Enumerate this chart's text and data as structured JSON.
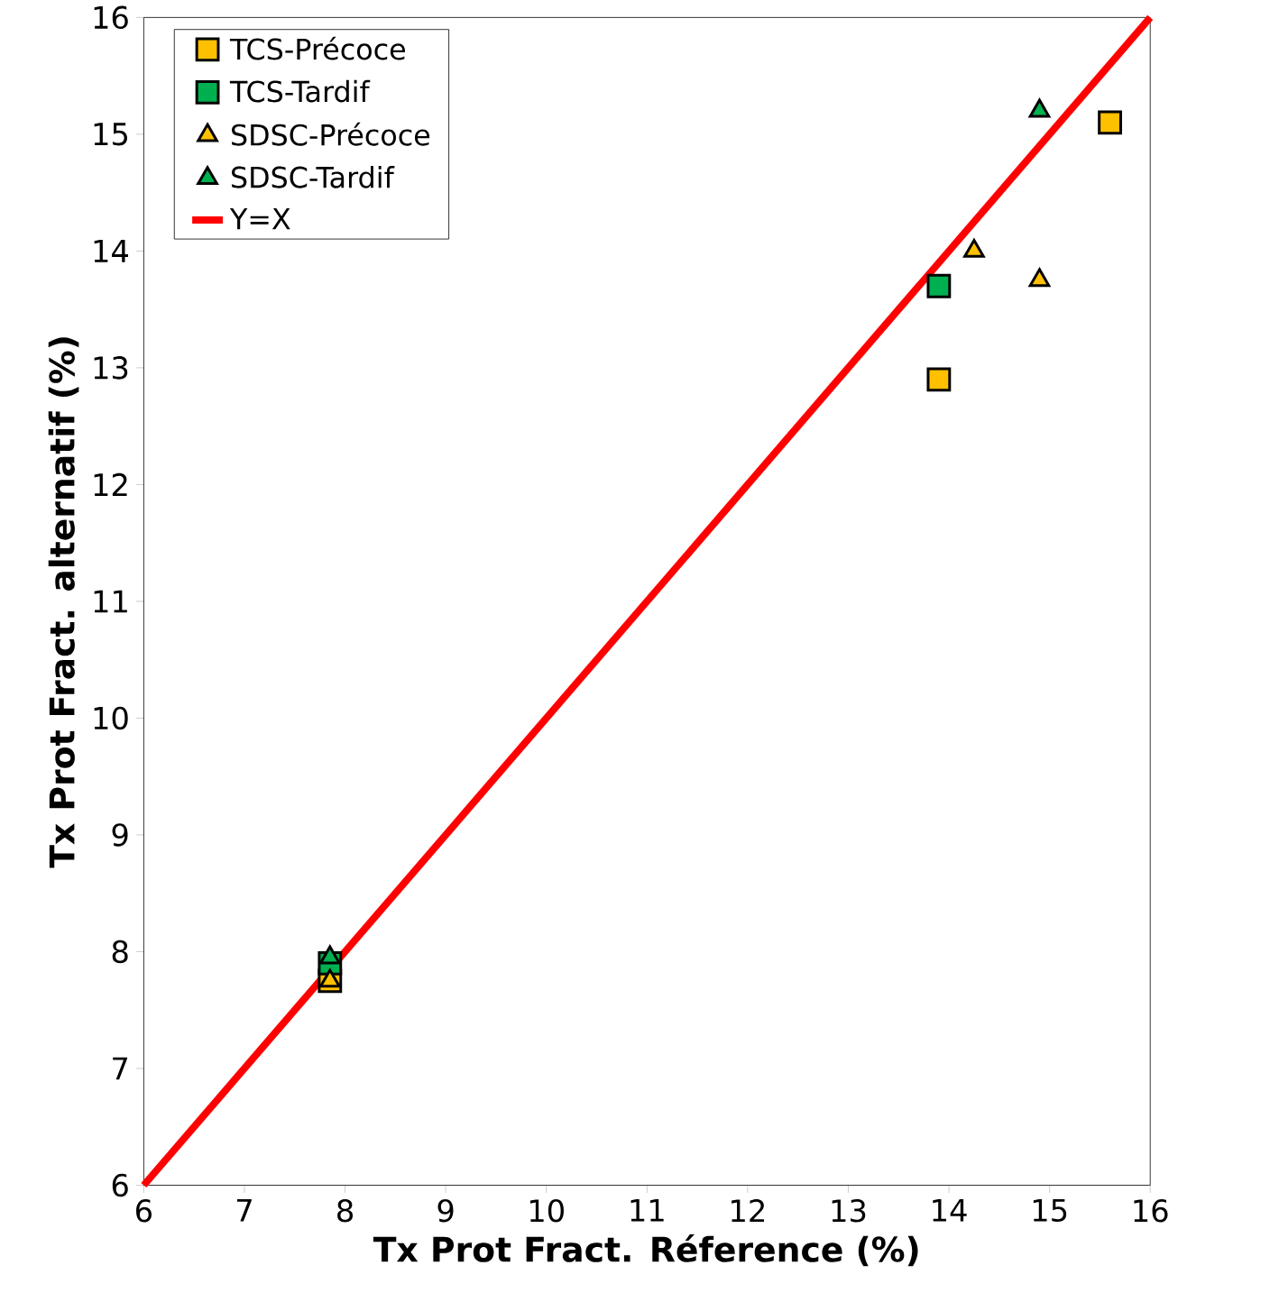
{
  "chart_data": {
    "type": "scatter",
    "xlabel": "Tx Prot Fract. Réference (%)",
    "ylabel": "Tx Prot Fract. alternatif (%)",
    "xlim": [
      6,
      16
    ],
    "ylim": [
      6,
      16
    ],
    "xticks": [
      6,
      7,
      8,
      9,
      10,
      11,
      12,
      13,
      14,
      15,
      16
    ],
    "yticks": [
      6,
      7,
      8,
      9,
      10,
      11,
      12,
      13,
      14,
      15,
      16
    ],
    "legend": "top left",
    "grid": false,
    "series": [
      {
        "name": "TCS-Précoce",
        "marker": "square",
        "color": "#ffc000",
        "x": [
          7.85,
          13.9,
          15.6
        ],
        "values": [
          7.75,
          12.9,
          15.1
        ]
      },
      {
        "name": "TCS-Tardif",
        "marker": "square",
        "color": "#00b050",
        "x": [
          7.85,
          13.9
        ],
        "values": [
          7.9,
          13.7
        ]
      },
      {
        "name": "SDSC-Précoce",
        "marker": "triangle",
        "color": "#ffc000",
        "x": [
          7.85,
          14.25,
          14.9
        ],
        "values": [
          7.75,
          14.0,
          13.75
        ]
      },
      {
        "name": "SDSC-Tardif",
        "marker": "triangle",
        "color": "#00b050",
        "x": [
          7.85,
          14.9
        ],
        "values": [
          7.95,
          15.2
        ]
      },
      {
        "name": "Y=X",
        "type": "line",
        "marker": "none",
        "color": "#ff0000",
        "x": [
          6,
          16
        ],
        "values": [
          6,
          16
        ]
      }
    ]
  }
}
